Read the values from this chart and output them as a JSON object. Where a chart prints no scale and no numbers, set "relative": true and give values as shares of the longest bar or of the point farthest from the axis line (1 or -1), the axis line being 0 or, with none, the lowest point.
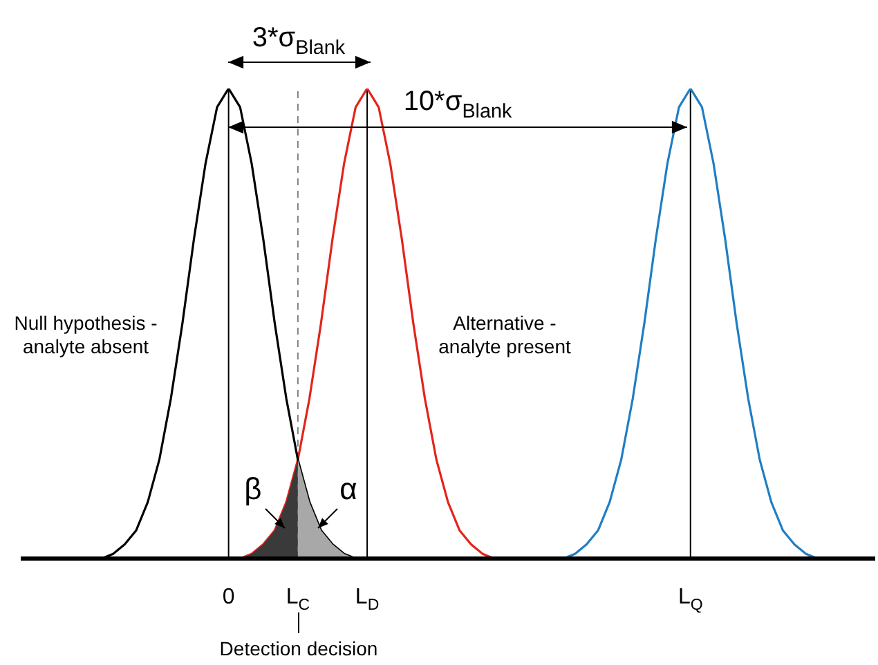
{
  "chart_data": {
    "type": "line",
    "relative": true,
    "marker": "none",
    "line_style": "solid",
    "categories": [
      null,
      null,
      null,
      null,
      null,
      null,
      null,
      null,
      null,
      null,
      null,
      null,
      null,
      null,
      null,
      null,
      null,
      null,
      "0",
      null,
      null,
      null,
      null,
      null,
      "L$_{C}$",
      null,
      null,
      null,
      null,
      null,
      "L$_{D}$",
      null,
      null,
      null,
      null,
      null,
      null,
      null,
      null,
      null,
      null,
      null,
      null,
      null,
      null,
      null,
      null,
      null,
      null,
      null,
      null,
      null,
      null,
      null,
      null,
      null,
      null,
      null,
      "L$_{Q}$",
      null,
      null,
      null,
      null,
      null,
      null,
      null,
      null,
      null,
      null,
      null,
      null,
      null,
      null,
      null,
      null
    ],
    "series": [
      {
        "type": "area",
        "color": "#3a3a3a",
        "values": [
          null,
          null,
          null,
          null,
          null,
          null,
          null,
          null,
          null,
          null,
          null,
          null,
          null,
          null,
          null,
          null,
          null,
          null,
          null,
          0,
          0.01,
          0.03,
          0.06,
          0.12,
          0.21,
          null,
          null,
          null,
          null,
          null,
          null,
          null,
          null,
          null,
          null,
          null,
          null,
          null,
          null,
          null,
          null,
          null,
          null,
          null,
          null,
          null,
          null,
          null,
          null,
          null,
          null,
          null,
          null,
          null,
          null,
          null,
          null,
          null,
          null,
          null,
          null,
          null,
          null,
          null,
          null,
          null,
          null,
          null,
          null,
          null,
          null,
          null,
          null,
          null,
          null
        ]
      },
      {
        "type": "area",
        "color": "#a8a8a8",
        "values": [
          null,
          null,
          null,
          null,
          null,
          null,
          null,
          null,
          null,
          null,
          null,
          null,
          null,
          null,
          null,
          null,
          null,
          null,
          null,
          null,
          null,
          null,
          null,
          null,
          0.21,
          0.12,
          0.06,
          0.03,
          0.01,
          0,
          null,
          null,
          null,
          null,
          null,
          null,
          null,
          null,
          null,
          null,
          null,
          null,
          null,
          null,
          null,
          null,
          null,
          null,
          null,
          null,
          null,
          null,
          null,
          null,
          null,
          null,
          null,
          null,
          null,
          null,
          null,
          null,
          null,
          null,
          null,
          null,
          null,
          null,
          null,
          null,
          null,
          null,
          null,
          null,
          null
        ]
      },
      {
        "color": "#000000",
        "values": [
          null,
          null,
          null,
          null,
          null,
          null,
          null,
          0,
          0.01,
          0.03,
          0.06,
          0.12,
          0.21,
          0.34,
          0.5,
          0.68,
          0.84,
          0.96,
          1,
          0.96,
          0.84,
          0.68,
          0.5,
          0.34,
          0.21,
          0.12,
          0.06,
          0.03,
          0.01,
          0,
          null,
          null,
          null,
          null,
          null,
          null,
          null,
          null,
          null,
          null,
          null,
          null,
          null,
          null,
          null,
          null,
          null,
          null,
          null,
          null,
          null,
          null,
          null,
          null,
          null,
          null,
          null,
          null,
          null,
          null,
          null,
          null,
          null,
          null,
          null,
          null,
          null,
          null,
          null,
          null,
          null,
          null,
          null,
          null,
          null
        ]
      },
      {
        "color": "#e3241b",
        "values": [
          null,
          null,
          null,
          null,
          null,
          null,
          null,
          null,
          null,
          null,
          null,
          null,
          null,
          null,
          null,
          null,
          null,
          null,
          null,
          0,
          0.01,
          0.03,
          0.06,
          0.12,
          0.21,
          0.34,
          0.5,
          0.68,
          0.84,
          0.96,
          1,
          0.96,
          0.84,
          0.68,
          0.5,
          0.34,
          0.21,
          0.12,
          0.06,
          0.03,
          0.01,
          0,
          null,
          null,
          null,
          null,
          null,
          null,
          null,
          null,
          null,
          null,
          null,
          null,
          null,
          null,
          null,
          null,
          null,
          null,
          null,
          null,
          null,
          null,
          null,
          null,
          null,
          null,
          null,
          null,
          null,
          null,
          null,
          null,
          null
        ]
      },
      {
        "color": "#1f7ec4",
        "values": [
          null,
          null,
          null,
          null,
          null,
          null,
          null,
          null,
          null,
          null,
          null,
          null,
          null,
          null,
          null,
          null,
          null,
          null,
          null,
          null,
          null,
          null,
          null,
          null,
          null,
          null,
          null,
          null,
          null,
          null,
          null,
          null,
          null,
          null,
          null,
          null,
          null,
          null,
          null,
          null,
          null,
          null,
          null,
          null,
          null,
          null,
          null,
          0,
          0.01,
          0.03,
          0.06,
          0.12,
          0.21,
          0.34,
          0.5,
          0.68,
          0.84,
          0.96,
          1,
          0.96,
          0.84,
          0.68,
          0.5,
          0.34,
          0.21,
          0.12,
          0.06,
          0.03,
          0.01,
          0,
          null,
          null,
          null,
          null,
          null
        ]
      }
    ],
    "ref_lines": [
      {
        "axis": "x",
        "value": "0",
        "color": "#000000"
      },
      {
        "axis": "x",
        "value": "L$_{D}$",
        "color": "#000000"
      },
      {
        "axis": "x",
        "value": "L$_{Q}$",
        "color": "#000000"
      },
      {
        "axis": "x",
        "value": "L$_{C}$",
        "color": "#808080",
        "line_style": "dashed"
      }
    ],
    "annotations": [
      "3*σ$_{Blank}$",
      "10*σ$_{Blank}$",
      "Null hypothesis -\nanalyte absent",
      "Alternative -\nanalyte present",
      "β",
      "α",
      "Detection decision"
    ]
  }
}
